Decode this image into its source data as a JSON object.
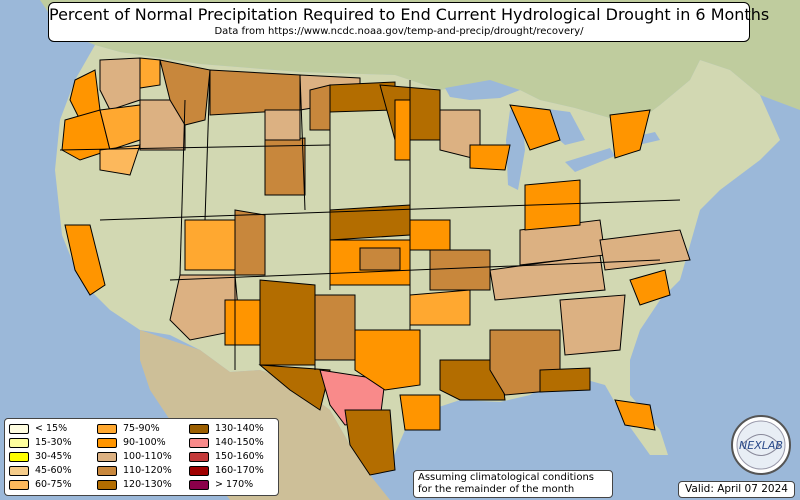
{
  "title": "Percent of Normal Precipitation Required to End Current Hydrological Drought in 6 Months",
  "subtitle": "Data from https://www.ncdc.noaa.gov/temp-and-precip/drought/recovery/",
  "legend": [
    {
      "label": "< 15%",
      "color": "#fffde0"
    },
    {
      "label": "15-30%",
      "color": "#ffff9e"
    },
    {
      "label": "30-45%",
      "color": "#ffff00"
    },
    {
      "label": "45-60%",
      "color": "#f5cc8a"
    },
    {
      "label": "60-75%",
      "color": "#fcb85c"
    },
    {
      "label": "75-90%",
      "color": "#ffa830"
    },
    {
      "label": "90-100%",
      "color": "#ff9500"
    },
    {
      "label": "100-110%",
      "color": "#dcb182"
    },
    {
      "label": "110-120%",
      "color": "#c8873c"
    },
    {
      "label": "120-130%",
      "color": "#b36d00"
    },
    {
      "label": "130-140%",
      "color": "#9b5e00"
    },
    {
      "label": "140-150%",
      "color": "#f98a8a"
    },
    {
      "label": "150-160%",
      "color": "#c43a3a"
    },
    {
      "label": "160-170%",
      "color": "#a00000"
    },
    {
      "label": "> 170%",
      "color": "#8b004a"
    }
  ],
  "note_line1": "Assuming climatological conditions",
  "note_line2": "for the remainder of the month",
  "valid": "Valid: April 07 2024",
  "logo_text": "NEXLAB",
  "colors": {
    "ocean": "#9bb8d9",
    "land": "#cfd9b4",
    "land_dry": "#d8cfa8",
    "canada": "#b9c89a",
    "mexico": "#cdbf98",
    "border": "#000000"
  }
}
